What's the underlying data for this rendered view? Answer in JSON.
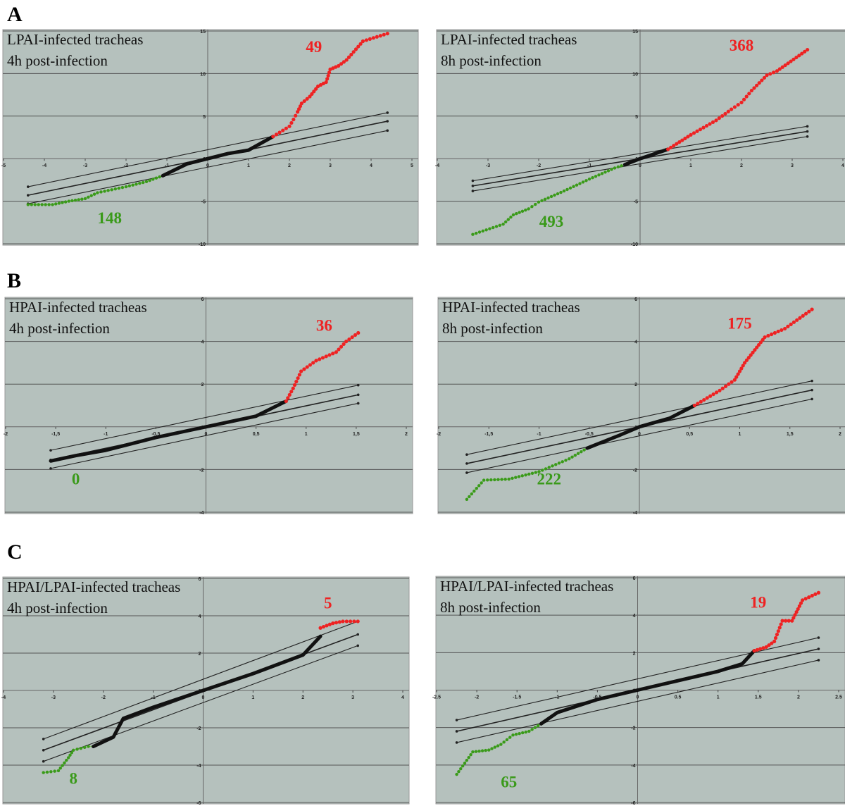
{
  "colors": {
    "background": "#b5c1bd",
    "grid": "#555555",
    "unchanged": "#111111",
    "down": "#3a9a1a",
    "up": "#ee2222",
    "up_line": "#d88ab8",
    "down_line": "#7cc060"
  },
  "chart_data": [
    {
      "panel": "A",
      "type": "scatter",
      "title": [
        "LPAI-infected tracheas",
        "4h post-infection"
      ],
      "xlim": [
        -5,
        5
      ],
      "ylim": [
        -10,
        15
      ],
      "xticks": [
        -5,
        -4,
        -3,
        -2,
        -1,
        0,
        1,
        2,
        3,
        4,
        5
      ],
      "yticks": [
        -10,
        -5,
        0,
        5,
        10,
        15
      ],
      "xtick_labels": [
        "-5",
        "-4",
        "-3",
        "-2",
        "-1",
        "0",
        "1",
        "2",
        "3",
        "4",
        "5"
      ],
      "ytick_labels": [
        "-10",
        "-5",
        "0",
        "5",
        "10",
        "15"
      ],
      "grid": "horizontal",
      "down_count": "148",
      "up_count": "49",
      "down": [
        [
          -4.4,
          -5.4
        ],
        [
          -3.8,
          -5.4
        ],
        [
          -3.4,
          -5
        ],
        [
          -3,
          -4.7
        ],
        [
          -2.7,
          -4
        ],
        [
          -2,
          -3.3
        ],
        [
          -1.5,
          -2.7
        ],
        [
          -1.1,
          -2
        ]
      ],
      "unchanged": [
        [
          -1.1,
          -2
        ],
        [
          -0.5,
          -0.6
        ],
        [
          0,
          0
        ],
        [
          0.5,
          0.6
        ],
        [
          1,
          1
        ],
        [
          1.6,
          2.6
        ]
      ],
      "up": [
        [
          1.6,
          2.6
        ],
        [
          2,
          3.8
        ],
        [
          2.1,
          4.6
        ],
        [
          2.2,
          5.5
        ],
        [
          2.3,
          6.5
        ],
        [
          2.5,
          7.3
        ],
        [
          2.7,
          8.5
        ],
        [
          2.9,
          9
        ],
        [
          3,
          10.5
        ],
        [
          3.2,
          10.9
        ],
        [
          3.4,
          11.6
        ],
        [
          3.8,
          13.8
        ],
        [
          4.4,
          14.7
        ]
      ],
      "reference_lines": [
        [
          [
            -4.4,
            -3.3
          ],
          [
            4.4,
            5.4
          ]
        ],
        [
          [
            -4.4,
            -4.3
          ],
          [
            4.4,
            4.4
          ]
        ],
        [
          [
            -4.4,
            -5.3
          ],
          [
            4.4,
            3.3
          ]
        ]
      ],
      "count_positions": {
        "up": [
          2.6,
          12.5
        ],
        "down": [
          -2.4,
          -7.6
        ]
      }
    },
    {
      "panel": "A",
      "type": "scatter",
      "title": [
        "LPAI-infected tracheas",
        "8h post-infection"
      ],
      "xlim": [
        -4,
        4
      ],
      "ylim": [
        -10,
        15
      ],
      "xticks": [
        -4,
        -3,
        -2,
        -1,
        0,
        1,
        2,
        3,
        4
      ],
      "yticks": [
        -10,
        -5,
        0,
        5,
        10,
        15
      ],
      "xtick_labels": [
        "-4",
        "-3",
        "-2",
        "-1",
        "0",
        "1",
        "2",
        "3",
        "4"
      ],
      "ytick_labels": [
        "-10",
        "-5",
        "0",
        "5",
        "10",
        "15"
      ],
      "grid": "horizontal",
      "down_count": "493",
      "up_count": "368",
      "down": [
        [
          -3.3,
          -8.9
        ],
        [
          -2.7,
          -7.7
        ],
        [
          -2.5,
          -6.6
        ],
        [
          -2.2,
          -5.9
        ],
        [
          -2,
          -5.1
        ],
        [
          -1.5,
          -3.8
        ],
        [
          -1,
          -2.4
        ],
        [
          -0.5,
          -1.1
        ],
        [
          -0.3,
          -0.7
        ]
      ],
      "unchanged": [
        [
          -0.3,
          -0.7
        ],
        [
          0,
          0
        ],
        [
          0.3,
          0.6
        ],
        [
          0.55,
          1.1
        ]
      ],
      "up": [
        [
          0.55,
          1.1
        ],
        [
          1,
          2.8
        ],
        [
          1.5,
          4.5
        ],
        [
          1.8,
          5.8
        ],
        [
          2,
          6.6
        ],
        [
          2.2,
          8
        ],
        [
          2.5,
          9.8
        ],
        [
          2.7,
          10.3
        ],
        [
          3.3,
          12.8
        ]
      ],
      "reference_lines": [
        [
          [
            -3.3,
            -2.6
          ],
          [
            3.3,
            3.8
          ]
        ],
        [
          [
            -3.3,
            -3.2
          ],
          [
            3.3,
            3.2
          ]
        ],
        [
          [
            -3.3,
            -3.8
          ],
          [
            3.3,
            2.6
          ]
        ]
      ],
      "count_positions": {
        "up": [
          2,
          12.7
        ],
        "down": [
          -1.75,
          -8
        ]
      }
    },
    {
      "panel": "B",
      "type": "scatter",
      "title": [
        "HPAI-infected tracheas",
        "4h post-infection"
      ],
      "xlim": [
        -2,
        2
      ],
      "ylim": [
        -4,
        6
      ],
      "xticks": [
        -2,
        -1.5,
        -1,
        -0.5,
        0,
        0.5,
        1,
        1.5,
        2
      ],
      "yticks": [
        -4,
        -2,
        0,
        2,
        4,
        6
      ],
      "xtick_labels": [
        "-2",
        "-1,5",
        "-1",
        "-0,5",
        "0",
        "0,5",
        "1",
        "1,5",
        "2"
      ],
      "ytick_labels": [
        "-4",
        "-2",
        "0",
        "2",
        "4",
        "6"
      ],
      "grid": "horizontal",
      "down_count": "0",
      "up_count": "36",
      "down": [],
      "unchanged": [
        [
          -1.55,
          -1.6
        ],
        [
          -1.3,
          -1.35
        ],
        [
          -1,
          -1.1
        ],
        [
          -0.5,
          -0.5
        ],
        [
          0,
          0
        ],
        [
          0.5,
          0.5
        ],
        [
          0.8,
          1.2
        ]
      ],
      "up": [
        [
          0.8,
          1.2
        ],
        [
          0.87,
          1.8
        ],
        [
          0.95,
          2.6
        ],
        [
          1.1,
          3.1
        ],
        [
          1.3,
          3.5
        ],
        [
          1.4,
          4
        ],
        [
          1.52,
          4.4
        ]
      ],
      "reference_lines": [
        [
          [
            -1.55,
            -1.1
          ],
          [
            1.52,
            1.95
          ]
        ],
        [
          [
            -1.55,
            -1.55
          ],
          [
            1.52,
            1.5
          ]
        ],
        [
          [
            -1.55,
            -1.95
          ],
          [
            1.52,
            1.1
          ]
        ]
      ],
      "count_positions": {
        "up": [
          1.18,
          4.5
        ],
        "down": [
          -1.3,
          -2.7
        ]
      }
    },
    {
      "panel": "B",
      "type": "scatter",
      "title": [
        "HPAI-infected tracheas",
        "8h post-infection"
      ],
      "xlim": [
        -2,
        2
      ],
      "ylim": [
        -4,
        6
      ],
      "xticks": [
        -2,
        -1.5,
        -1,
        -0.5,
        0,
        0.5,
        1,
        1.5,
        2
      ],
      "yticks": [
        -4,
        -2,
        0,
        2,
        4,
        6
      ],
      "xtick_labels": [
        "-2",
        "-1,5",
        "-1",
        "-0,5",
        "0",
        "0,5",
        "1",
        "1,5",
        "2"
      ],
      "ytick_labels": [
        "-4",
        "-2",
        "0",
        "2",
        "4",
        "6"
      ],
      "grid": "horizontal",
      "down_count": "222",
      "up_count": "175",
      "down": [
        [
          -1.72,
          -3.4
        ],
        [
          -1.55,
          -2.5
        ],
        [
          -1.3,
          -2.45
        ],
        [
          -1,
          -2.1
        ],
        [
          -0.7,
          -1.5
        ],
        [
          -0.52,
          -1
        ]
      ],
      "unchanged": [
        [
          -0.52,
          -1
        ],
        [
          -0.2,
          -0.4
        ],
        [
          0,
          0
        ],
        [
          0.3,
          0.4
        ],
        [
          0.55,
          1
        ]
      ],
      "up": [
        [
          0.55,
          1
        ],
        [
          0.8,
          1.7
        ],
        [
          0.95,
          2.2
        ],
        [
          1.05,
          3
        ],
        [
          1.15,
          3.6
        ],
        [
          1.25,
          4.2
        ],
        [
          1.45,
          4.6
        ],
        [
          1.6,
          5.1
        ],
        [
          1.72,
          5.5
        ]
      ],
      "reference_lines": [
        [
          [
            -1.72,
            -1.3
          ],
          [
            1.72,
            2.15
          ]
        ],
        [
          [
            -1.72,
            -1.72
          ],
          [
            1.72,
            1.72
          ]
        ],
        [
          [
            -1.72,
            -2.15
          ],
          [
            1.72,
            1.3
          ]
        ]
      ],
      "count_positions": {
        "up": [
          1,
          4.6
        ],
        "down": [
          -0.9,
          -2.7
        ]
      }
    },
    {
      "panel": "C",
      "type": "scatter",
      "title": [
        "HPAI/LPAI-infected tracheas",
        "4h post-infection"
      ],
      "xlim": [
        -4,
        4
      ],
      "ylim": [
        -6,
        6
      ],
      "xticks": [
        -4,
        -3,
        -2,
        -1,
        0,
        1,
        2,
        3,
        4
      ],
      "yticks": [
        -6,
        -4,
        -2,
        0,
        2,
        4,
        6
      ],
      "xtick_labels": [
        "-4",
        "-3",
        "-2",
        "-1",
        "0",
        "1",
        "2",
        "3",
        "4"
      ],
      "ytick_labels": [
        "-6",
        "-4",
        "-2",
        "0",
        "2",
        "4",
        "6"
      ],
      "grid": "horizontal",
      "down_count": "8",
      "up_count": "5",
      "down": [
        [
          -3.2,
          -4.4
        ],
        [
          -2.9,
          -4.3
        ],
        [
          -2.7,
          -3.6
        ],
        [
          -2.6,
          -3.2
        ],
        [
          -2.3,
          -3
        ],
        [
          -2.2,
          -3
        ]
      ],
      "unchanged": [
        [
          -2.2,
          -3
        ],
        [
          -1.8,
          -2.5
        ],
        [
          -1.6,
          -1.5
        ],
        [
          -1,
          -0.9
        ],
        [
          0,
          0
        ],
        [
          1,
          0.9
        ],
        [
          2,
          1.9
        ],
        [
          2.35,
          2.9
        ]
      ],
      "up": [
        [
          2.35,
          3.35
        ],
        [
          2.6,
          3.6
        ],
        [
          2.8,
          3.7
        ],
        [
          3.1,
          3.7
        ]
      ],
      "reference_lines": [
        [
          [
            -3.2,
            -2.6
          ],
          [
            3.1,
            3.7
          ]
        ],
        [
          [
            -3.2,
            -3.2
          ],
          [
            3.1,
            3.0
          ]
        ],
        [
          [
            -3.2,
            -3.8
          ],
          [
            3.1,
            2.4
          ]
        ]
      ],
      "count_positions": {
        "up": [
          2.5,
          4.4
        ],
        "down": [
          -2.6,
          -5
        ]
      }
    },
    {
      "panel": "C",
      "type": "scatter",
      "title": [
        "HPAI/LPAI-infected tracheas",
        "8h post-infection"
      ],
      "xlim": [
        -2.5,
        2.5
      ],
      "ylim": [
        -6,
        6
      ],
      "xticks": [
        -2.5,
        -2,
        -1.5,
        -1,
        -0.5,
        0,
        0.5,
        1,
        1.5,
        2,
        2.5
      ],
      "yticks": [
        -6,
        -4,
        -2,
        0,
        2,
        4,
        6
      ],
      "xtick_labels": [
        "-2.5",
        "-2",
        "-1.5",
        "-1",
        "-0.5",
        "0",
        "0.5",
        "1",
        "1.5",
        "2",
        "2.5"
      ],
      "ytick_labels": [
        "-6",
        "-4",
        "-2",
        "0",
        "2",
        "4",
        "6"
      ],
      "grid": "horizontal",
      "down_count": "65",
      "up_count": "19",
      "down": [
        [
          -2.25,
          -4.5
        ],
        [
          -2.05,
          -3.3
        ],
        [
          -1.85,
          -3.2
        ],
        [
          -1.7,
          -2.9
        ],
        [
          -1.55,
          -2.4
        ],
        [
          -1.35,
          -2.2
        ],
        [
          -1.2,
          -1.8
        ]
      ],
      "unchanged": [
        [
          -1.2,
          -1.8
        ],
        [
          -1,
          -1.2
        ],
        [
          -0.5,
          -0.5
        ],
        [
          0,
          0
        ],
        [
          0.5,
          0.5
        ],
        [
          1,
          1
        ],
        [
          1.3,
          1.4
        ],
        [
          1.45,
          2.1
        ]
      ],
      "up": [
        [
          1.45,
          2.1
        ],
        [
          1.6,
          2.3
        ],
        [
          1.7,
          2.6
        ],
        [
          1.8,
          3.7
        ],
        [
          1.92,
          3.7
        ],
        [
          2.05,
          4.8
        ],
        [
          2.25,
          5.2
        ]
      ],
      "reference_lines": [
        [
          [
            -2.25,
            -1.6
          ],
          [
            2.25,
            2.8
          ]
        ],
        [
          [
            -2.25,
            -2.2
          ],
          [
            2.25,
            2.2
          ]
        ],
        [
          [
            -2.25,
            -2.8
          ],
          [
            2.25,
            1.6
          ]
        ]
      ],
      "count_positions": {
        "up": [
          1.5,
          4.4
        ],
        "down": [
          -1.6,
          -5.2
        ]
      }
    }
  ],
  "panel_labels": [
    "A",
    "B",
    "C"
  ]
}
